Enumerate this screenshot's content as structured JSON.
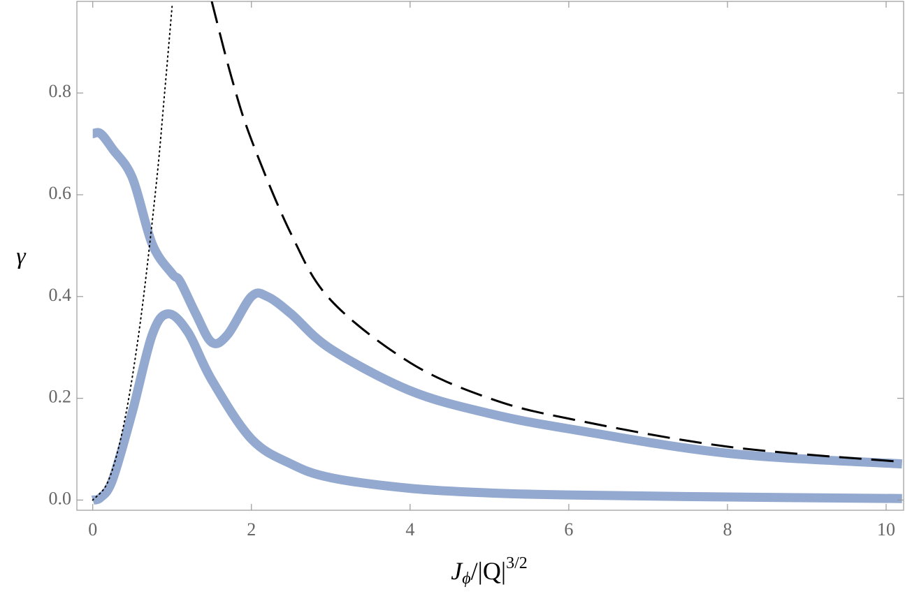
{
  "chart_data": {
    "type": "line",
    "x_label": [
      "J",
      "ϕ",
      "/|Q|",
      "3/2"
    ],
    "y_label": "γ",
    "xlim": [
      -0.2,
      10.22
    ],
    "ylim": [
      -0.02,
      0.98
    ],
    "xticks": [
      0,
      2,
      4,
      6,
      8,
      10
    ],
    "yticks": [
      {
        "value": 0,
        "label": "0.0"
      },
      0.2,
      0.4,
      0.6,
      0.8
    ],
    "grid": false,
    "series": [
      {
        "color": "#93a9cf",
        "width": 13,
        "style": "solid",
        "x": [
          0,
          0.1,
          0.25,
          0.5,
          0.75,
          1.0,
          1.1,
          1.3,
          1.5,
          1.7,
          2.0,
          2.2,
          2.5,
          3,
          4,
          5,
          6,
          8,
          10.2
        ],
        "values": [
          0.72,
          0.72,
          0.69,
          0.633,
          0.503,
          0.445,
          0.43,
          0.366,
          0.31,
          0.325,
          0.4,
          0.4,
          0.366,
          0.297,
          0.215,
          0.17,
          0.14,
          0.092,
          0.071
        ]
      },
      {
        "color": "#93a9cf",
        "width": 13,
        "style": "solid",
        "x": [
          0,
          0.1,
          0.25,
          0.5,
          0.75,
          0.95,
          1.2,
          1.5,
          2,
          2.5,
          3,
          4,
          5,
          6,
          8,
          10.2
        ],
        "values": [
          0,
          0.005,
          0.04,
          0.174,
          0.325,
          0.366,
          0.33,
          0.236,
          0.12,
          0.071,
          0.044,
          0.023,
          0.014,
          0.01,
          0.006,
          0.003
        ]
      },
      {
        "color": "#000000",
        "width": 2,
        "style": "dotted",
        "x": [
          0,
          0.2,
          0.4,
          0.6,
          0.8,
          0.9,
          1.0
        ],
        "values": [
          0,
          0.039,
          0.155,
          0.35,
          0.62,
          0.79,
          0.97
        ]
      },
      {
        "color": "#000000",
        "width": 3,
        "style": "dashed",
        "x": [
          1.5,
          1.75,
          2,
          2.5,
          3,
          4,
          5,
          6,
          8,
          10.2
        ],
        "values": [
          0.98,
          0.83,
          0.708,
          0.523,
          0.393,
          0.27,
          0.2,
          0.16,
          0.105,
          0.075
        ]
      }
    ]
  }
}
